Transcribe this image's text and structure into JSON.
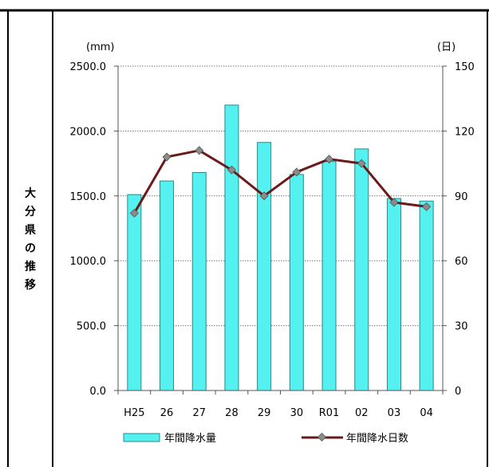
{
  "side_label": [
    "大",
    "分",
    "県",
    "の",
    "推",
    "移"
  ],
  "chart_data": {
    "type": "bar+line",
    "categories": [
      "H25",
      "26",
      "27",
      "28",
      "29",
      "30",
      "R01",
      "02",
      "03",
      "04"
    ],
    "series": [
      {
        "name": "年間降水量",
        "type": "bar",
        "axis": "left",
        "values": [
          1510,
          1615,
          1680,
          2200,
          1912,
          1665,
          1765,
          1862,
          1480,
          1460
        ]
      },
      {
        "name": "年間降水日数",
        "type": "line",
        "axis": "right",
        "values": [
          82,
          108,
          111,
          102,
          90,
          101,
          107,
          105,
          87,
          85
        ]
      }
    ],
    "left_unit": "(mm)",
    "right_unit": "(日)",
    "left_ylim": [
      0,
      2500
    ],
    "right_ylim": [
      0,
      150
    ],
    "left_ticks": [
      "0.0",
      "500.0",
      "1000.0",
      "1500.0",
      "2000.0",
      "2500.0"
    ],
    "right_ticks": [
      "0",
      "30",
      "60",
      "90",
      "120",
      "150"
    ],
    "grid": true,
    "legend_position": "bottom",
    "colors": {
      "bar_fill": "#55f0f0",
      "bar_stroke": "#2a8a8a",
      "line": "#6b1a1a",
      "marker": "#8c8c8c"
    }
  }
}
